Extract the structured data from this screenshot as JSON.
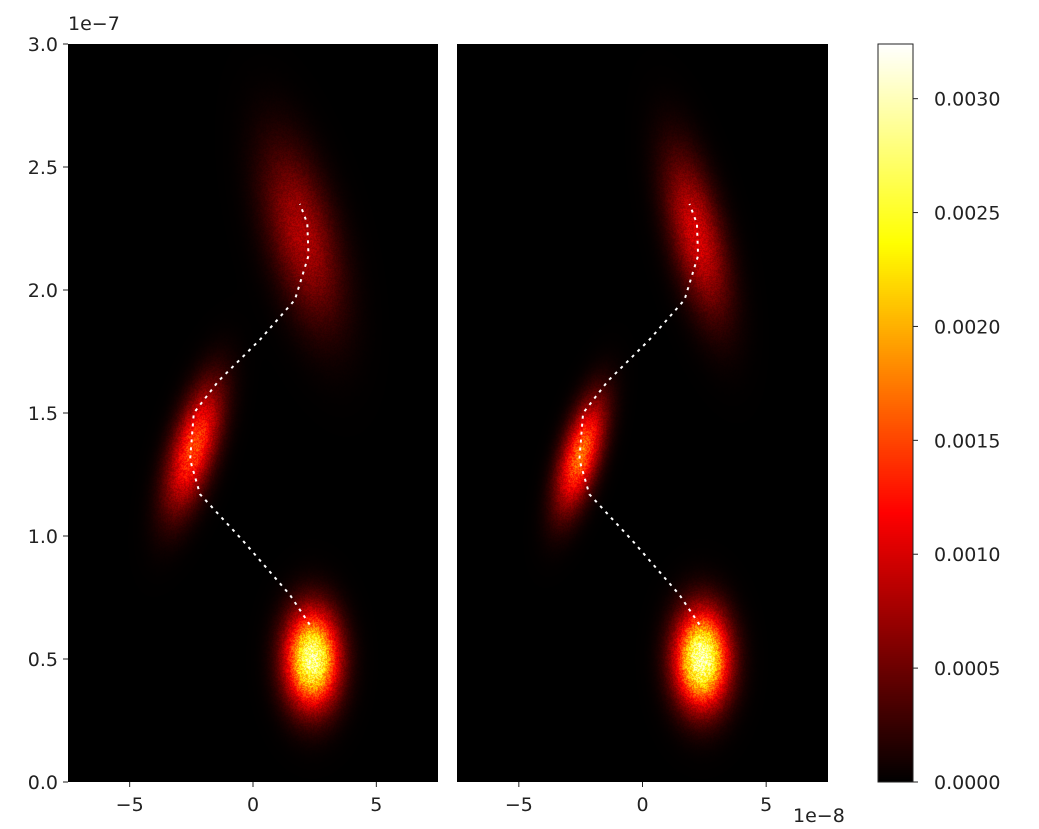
{
  "chart_data": [
    {
      "type": "heatmap",
      "panel": "left",
      "x_offset_label": "",
      "y_offset_label": "1e−7",
      "xlim": [
        -7.5,
        7.5
      ],
      "ylim": [
        0.0,
        3.0
      ],
      "x_ticks": [
        -5,
        0,
        5
      ],
      "x_tick_labels": [
        "−5",
        "0",
        "5"
      ],
      "y_ticks": [
        0.0,
        0.5,
        1.0,
        1.5,
        2.0,
        2.5,
        3.0
      ],
      "y_tick_labels": [
        "0.0",
        "0.5",
        "1.0",
        "1.5",
        "2.0",
        "2.5",
        "3.0"
      ],
      "colormap": "hot",
      "blobs": [
        {
          "cx": 2.4,
          "cy": 0.5,
          "sx": 0.72,
          "sy": 0.13,
          "rho": 0.0,
          "peak": 0.0029
        },
        {
          "cx": -2.4,
          "cy": 1.36,
          "sx": 0.75,
          "sy": 0.17,
          "rho": 0.6,
          "peak": 0.0015
        },
        {
          "cx": 2.0,
          "cy": 2.22,
          "sx": 1.05,
          "sy": 0.24,
          "rho": -0.5,
          "peak": 0.0008
        }
      ],
      "path": {
        "style": "white dotted",
        "x": [
          2.3,
          1.5,
          -0.4,
          -2.15,
          -2.55,
          -2.4,
          -1.4,
          0.3,
          1.7,
          2.25,
          2.2,
          1.9
        ],
        "y": [
          0.64,
          0.76,
          0.98,
          1.17,
          1.31,
          1.5,
          1.63,
          1.8,
          1.96,
          2.14,
          2.27,
          2.35
        ]
      }
    },
    {
      "type": "heatmap",
      "panel": "right",
      "x_offset_label": "1e−8",
      "xlim": [
        -7.5,
        7.5
      ],
      "ylim": [
        0.0,
        3.0
      ],
      "x_ticks": [
        -5,
        0,
        5
      ],
      "x_tick_labels": [
        "−5",
        "0",
        "5"
      ],
      "colormap": "hot",
      "blobs": [
        {
          "cx": 2.4,
          "cy": 0.5,
          "sx": 0.72,
          "sy": 0.13,
          "rho": 0.0,
          "peak": 0.003
        },
        {
          "cx": -2.5,
          "cy": 1.33,
          "sx": 0.65,
          "sy": 0.15,
          "rho": 0.6,
          "peak": 0.0017
        },
        {
          "cx": 2.2,
          "cy": 2.22,
          "sx": 0.85,
          "sy": 0.22,
          "rho": -0.55,
          "peak": 0.001
        }
      ],
      "path": {
        "style": "white dotted",
        "x": [
          2.3,
          1.5,
          -0.4,
          -2.15,
          -2.55,
          -2.4,
          -1.4,
          0.3,
          1.7,
          2.25,
          2.2,
          1.9
        ],
        "y": [
          0.64,
          0.76,
          0.98,
          1.17,
          1.31,
          1.5,
          1.63,
          1.8,
          1.96,
          2.14,
          2.27,
          2.35
        ]
      }
    }
  ],
  "colorbar": {
    "colormap": "hot",
    "vmin": 0.0,
    "vmax": 0.00324,
    "ticks": [
      0.0,
      0.0005,
      0.001,
      0.0015,
      0.002,
      0.0025,
      0.003
    ],
    "tick_labels": [
      "0.0000",
      "0.0005",
      "0.0010",
      "0.0015",
      "0.0020",
      "0.0025",
      "0.0030"
    ]
  }
}
